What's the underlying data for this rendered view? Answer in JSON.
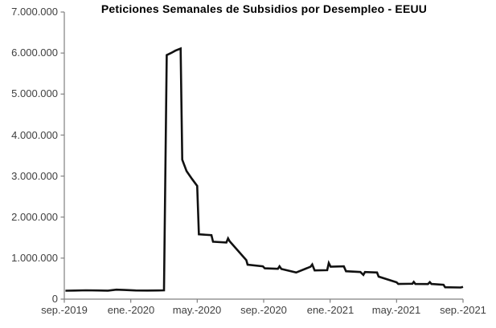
{
  "chart_data": {
    "type": "line",
    "title": "Peticiones Semanales de Subsidios por Desempleo - EEUU",
    "series_name": "Peticiones semanales de subsidios por desempleo",
    "line_color": "#111111",
    "axis_color": "#808080",
    "tick_label_color": "#404040",
    "grid": false,
    "legend_position": "none",
    "ylim": [
      0,
      7000000
    ],
    "x_range": [
      "2019-09-01",
      "2021-09-01"
    ],
    "y_tick_labels": [
      "7.000.000",
      "6.000.000",
      "5.000.000",
      "4.000.000",
      "3.000.000",
      "2.000.000",
      "1.000.000",
      "0"
    ],
    "y_tick_values": [
      7000000,
      6000000,
      5000000,
      4000000,
      3000000,
      2000000,
      1000000,
      0
    ],
    "x_tick_labels": [
      "sep.-2019",
      "ene.-2020",
      "may.-2020",
      "sep.-2020",
      "ene.-2021",
      "may.-2021",
      "sep.-2021"
    ],
    "points": [
      [
        "2019-09-03",
        205000
      ],
      [
        "2019-09-20",
        210000
      ],
      [
        "2019-10-10",
        215000
      ],
      [
        "2019-11-01",
        212000
      ],
      [
        "2019-11-20",
        208000
      ],
      [
        "2019-12-05",
        230000
      ],
      [
        "2019-12-20",
        222000
      ],
      [
        "2020-01-10",
        212000
      ],
      [
        "2020-02-01",
        210000
      ],
      [
        "2020-02-20",
        212000
      ],
      [
        "2020-03-01",
        215000
      ],
      [
        "2020-03-06",
        5950000
      ],
      [
        "2020-03-14",
        6000000
      ],
      [
        "2020-03-22",
        6060000
      ],
      [
        "2020-04-01",
        6110000
      ],
      [
        "2020-04-04",
        3400000
      ],
      [
        "2020-04-12",
        3120000
      ],
      [
        "2020-04-22",
        2930000
      ],
      [
        "2020-05-01",
        2760000
      ],
      [
        "2020-05-04",
        1580000
      ],
      [
        "2020-05-27",
        1560000
      ],
      [
        "2020-05-30",
        1400000
      ],
      [
        "2020-06-24",
        1380000
      ],
      [
        "2020-06-27",
        1480000
      ],
      [
        "2020-06-30",
        1410000
      ],
      [
        "2020-07-30",
        950000
      ],
      [
        "2020-08-02",
        840000
      ],
      [
        "2020-08-30",
        800000
      ],
      [
        "2020-09-03",
        750000
      ],
      [
        "2020-09-27",
        740000
      ],
      [
        "2020-09-30",
        800000
      ],
      [
        "2020-10-03",
        735000
      ],
      [
        "2020-10-30",
        650000
      ],
      [
        "2020-11-26",
        790000
      ],
      [
        "2020-11-29",
        845000
      ],
      [
        "2020-12-03",
        700000
      ],
      [
        "2020-12-26",
        705000
      ],
      [
        "2020-12-29",
        880000
      ],
      [
        "2021-01-02",
        790000
      ],
      [
        "2021-01-26",
        800000
      ],
      [
        "2021-01-30",
        680000
      ],
      [
        "2021-02-26",
        660000
      ],
      [
        "2021-03-01",
        590000
      ],
      [
        "2021-03-04",
        660000
      ],
      [
        "2021-03-26",
        650000
      ],
      [
        "2021-03-29",
        550000
      ],
      [
        "2021-05-01",
        410000
      ],
      [
        "2021-05-04",
        370000
      ],
      [
        "2021-05-30",
        375000
      ],
      [
        "2021-06-02",
        420000
      ],
      [
        "2021-06-05",
        370000
      ],
      [
        "2021-06-28",
        368000
      ],
      [
        "2021-07-01",
        415000
      ],
      [
        "2021-07-04",
        370000
      ],
      [
        "2021-07-26",
        350000
      ],
      [
        "2021-07-29",
        290000
      ],
      [
        "2021-08-27",
        283000
      ],
      [
        "2021-09-01",
        300000
      ]
    ]
  }
}
